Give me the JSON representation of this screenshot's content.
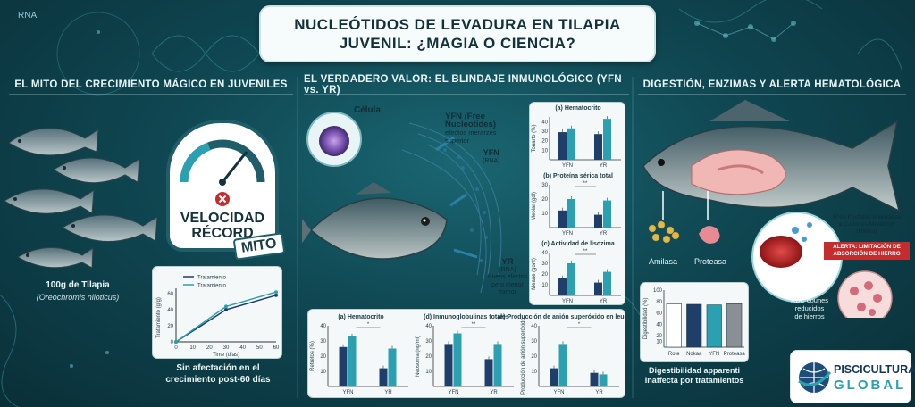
{
  "title": {
    "line1": "NUCLEÓTIDOS DE LEVADURA EN TILAPIA",
    "line2": "JUVENIL: ¿MAGIA O CIENCIA?"
  },
  "rna_corner": "RNA",
  "sections": {
    "left": "EL MITO DEL CRECIMIENTO MÁGICO EN JUVENILES",
    "middle": "EL VERDADERO VALOR: EL BLINDAJE INMUNOLÓGICO (YFN vs. YR)",
    "right": "DIGESTIÓN, ENZIMAS Y ALERTA HEMATOLÓGICA"
  },
  "left": {
    "speedometer": {
      "line1": "VELOCIDAD",
      "line2": "RÉCORD",
      "stamp": "MITO"
    },
    "fish_label": "100g de Tilapia",
    "fish_species": "(Oreochromis niloticus)",
    "growth_chart": {
      "legend": [
        "Tratamiento",
        "Tratamiento"
      ],
      "ylabel": "Tratamiento (g/g)",
      "xlabel": "Time (días)",
      "xticks": [
        "0",
        "10",
        "20",
        "30",
        "40",
        "50",
        "60"
      ],
      "yticks": [
        "0",
        "20",
        "40",
        "60"
      ],
      "series": [
        {
          "x": [
            0,
            30,
            60
          ],
          "y": [
            0,
            40,
            58
          ],
          "color": "#1f3f6a"
        },
        {
          "x": [
            0,
            30,
            60
          ],
          "y": [
            0,
            44,
            62
          ],
          "color": "#2aa0b0"
        }
      ]
    },
    "caption": [
      "Sin afectación en el",
      "crecimiento post-60 días"
    ]
  },
  "middle": {
    "cell_label": "Célula",
    "yfn_note": [
      "YFN (Free Nucleotides)",
      "efectos merarzes",
      "superior"
    ],
    "yfn_rna": [
      "YFN",
      "(RNA)"
    ],
    "yr_note": [
      "YR",
      "(RNA)",
      "Buens efectos",
      "pero menor",
      "menor"
    ],
    "bottom_charts": [
      {
        "title": "(a) Hematocrito",
        "ylabel": "Retretos (%)",
        "yticks": [
          "10",
          "20",
          "30",
          "40"
        ],
        "ymax": 40,
        "groups": [
          "YFN",
          "YR"
        ],
        "values": [
          [
            26,
            33
          ],
          [
            12,
            25
          ]
        ],
        "sig": "*"
      },
      {
        "title": "(d) Inmunoglobulinas totales",
        "ylabel": "Neosoma (ng/ml)",
        "yticks": [
          "10",
          "20",
          "30",
          "40"
        ],
        "ymax": 40,
        "groups": [
          "YFN",
          "YR"
        ],
        "values": [
          [
            28,
            35
          ],
          [
            18,
            28
          ]
        ],
        "sig": "**"
      },
      {
        "title": "(e) Producción de anión superóxido en leucocitos",
        "ylabel": "Producción de anión superóxido",
        "yticks": [
          "10",
          "20",
          "30",
          "40"
        ],
        "ymax": 40,
        "groups": [
          "YFN",
          "YR"
        ],
        "values": [
          [
            12,
            28
          ],
          [
            9,
            8
          ]
        ],
        "sig": "*"
      }
    ],
    "side_charts": [
      {
        "title": "(a) Hematocrito",
        "ylabel": "Tonarto (%)",
        "yticks": [
          "10",
          "20",
          "30",
          "40"
        ],
        "ymax": 45,
        "groups": [
          "YFN",
          "YR"
        ],
        "values": [
          [
            29,
            33
          ],
          [
            27,
            43
          ]
        ],
        "sig": ""
      },
      {
        "title": "(b) Proteína sérica total",
        "ylabel": "Meolar (gdl)",
        "yticks": [
          "10",
          "20",
          "30"
        ],
        "ymax": 30,
        "groups": [
          "YFN",
          "YR"
        ],
        "values": [
          [
            12,
            20
          ],
          [
            9,
            19
          ]
        ],
        "sig": "**"
      },
      {
        "title": "(c) Actividad de lisozima",
        "ylabel": "Meaue (gont)",
        "yticks": [
          "10",
          "20",
          "30",
          "40"
        ],
        "ymax": 40,
        "groups": [
          "YFN",
          "YR"
        ],
        "values": [
          [
            16,
            30
          ],
          [
            12,
            22
          ]
        ],
        "sig": "**"
      }
    ]
  },
  "right": {
    "amylase": "Amilasa",
    "protease": "Proteasa",
    "rna_phosphate": [
      "RNA-Fosfatos uniéndose",
      "a Cationes Metálicos",
      "(Hierro)"
    ],
    "alert": [
      "ALERTA: LIMITACIÓN DE",
      "ABSORCIÓN DE HIERRO"
    ],
    "rbc": [
      "RBC counes",
      "reducidos",
      "de hierros"
    ],
    "digest_chart": {
      "ylabel": "Digestibilidad (%)",
      "yticks": [
        "10",
        "20",
        "40",
        "60",
        "80",
        "100"
      ],
      "categories": [
        "Rote",
        "Nokaa",
        "YFN",
        "Proteasa"
      ],
      "values": [
        76,
        75,
        74,
        76
      ],
      "ymax": 100
    },
    "caption": [
      "Digestibilidad apparenti",
      "inaffecta por tratamientos"
    ]
  },
  "logo": {
    "line1": "PISCICULTURA",
    "line2": "GLOBAL"
  },
  "colors": {
    "teal": "#2aa0b0",
    "navy": "#1f3f6a",
    "alert": "#c42d2d",
    "bg": "#0f4752"
  }
}
